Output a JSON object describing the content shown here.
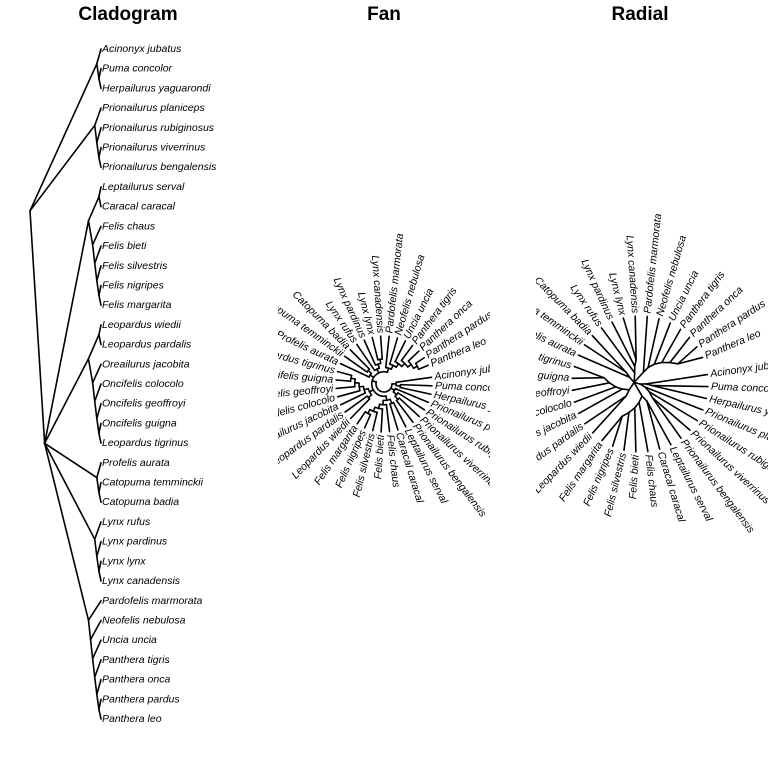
{
  "panels": [
    {
      "key": "cladogram",
      "title": "Cladogram"
    },
    {
      "key": "fan",
      "title": "Fan"
    },
    {
      "key": "radial",
      "title": "Radial"
    }
  ],
  "taxa": [
    "Acinonyx jubatus",
    "Puma concolor",
    "Herpailurus yaguarondi",
    "Prionailurus planiceps",
    "Prionailurus rubiginosus",
    "Prionailurus viverrinus",
    "Prionailurus bengalensis",
    "Leptailurus serval",
    "Caracal caracal",
    "Felis chaus",
    "Felis bieti",
    "Felis silvestris",
    "Felis nigripes",
    "Felis margarita",
    "Leopardus wiedii",
    "Leopardus pardalis",
    "Oreailurus jacobita",
    "Oncifelis colocolo",
    "Oncifelis geoffroyi",
    "Oncifelis guigna",
    "Leopardus tigrinus",
    "Profelis aurata",
    "Catopuma temminckii",
    "Catopuma badia",
    "Lynx rufus",
    "Lynx pardinus",
    "Lynx lynx",
    "Lynx canadensis",
    "Pardofelis marmorata",
    "Neofelis nebulosa",
    "Uncia uncia",
    "Panthera tigris",
    "Panthera onca",
    "Panthera pardus",
    "Panthera leo"
  ],
  "tree": {
    "name": "root",
    "children": [
      {
        "name": "puma-lineage",
        "children": [
          {
            "taxon": 0
          },
          {
            "name": "puma-herpailurus",
            "children": [
              {
                "taxon": 1
              },
              {
                "taxon": 2
              }
            ]
          }
        ]
      },
      {
        "name": "prionailurus",
        "children": [
          {
            "taxon": 3
          },
          {
            "name": "prionailurus-core",
            "children": [
              {
                "taxon": 4
              },
              {
                "name": "prionailurus-pair",
                "children": [
                  {
                    "taxon": 5
                  },
                  {
                    "taxon": 6
                  }
                ]
              }
            ]
          }
        ]
      },
      {
        "name": "core-felines",
        "children": [
          {
            "name": "caracal-felis",
            "children": [
              {
                "name": "caracal-lineage",
                "children": [
                  {
                    "taxon": 7
                  },
                  {
                    "taxon": 8
                  }
                ]
              },
              {
                "name": "felis",
                "children": [
                  {
                    "taxon": 9
                  },
                  {
                    "name": "felis-core",
                    "children": [
                      {
                        "taxon": 10
                      },
                      {
                        "name": "felis-silv",
                        "children": [
                          {
                            "taxon": 11
                          },
                          {
                            "name": "felis-sub",
                            "children": [
                              {
                                "taxon": 12
                              },
                              {
                                "taxon": 13
                              }
                            ]
                          }
                        ]
                      }
                    ]
                  }
                ]
              }
            ]
          },
          {
            "name": "leopardus-lineage",
            "children": [
              {
                "name": "leopardus-pair",
                "children": [
                  {
                    "taxon": 14
                  },
                  {
                    "taxon": 15
                  }
                ]
              },
              {
                "name": "oncifelis",
                "children": [
                  {
                    "taxon": 16
                  },
                  {
                    "name": "oncifelis-a",
                    "children": [
                      {
                        "taxon": 17
                      },
                      {
                        "name": "oncifelis-b",
                        "children": [
                          {
                            "taxon": 18
                          },
                          {
                            "name": "oncifelis-c",
                            "children": [
                              {
                                "taxon": 19
                              },
                              {
                                "taxon": 20
                              }
                            ]
                          }
                        ]
                      }
                    ]
                  }
                ]
              }
            ]
          },
          {
            "name": "bay-cat-lineage",
            "children": [
              {
                "taxon": 21
              },
              {
                "name": "catopuma",
                "children": [
                  {
                    "taxon": 22
                  },
                  {
                    "taxon": 23
                  }
                ]
              }
            ]
          },
          {
            "name": "lynx",
            "children": [
              {
                "taxon": 24
              },
              {
                "name": "lynx-core",
                "children": [
                  {
                    "taxon": 25
                  },
                  {
                    "name": "lynx-pair",
                    "children": [
                      {
                        "taxon": 26
                      },
                      {
                        "taxon": 27
                      }
                    ]
                  }
                ]
              }
            ]
          },
          {
            "name": "pantherinae",
            "children": [
              {
                "taxon": 28
              },
              {
                "name": "pantherinae-core",
                "children": [
                  {
                    "taxon": 29
                  },
                  {
                    "name": "uncia-panthera",
                    "children": [
                      {
                        "taxon": 30
                      },
                      {
                        "name": "panthera",
                        "children": [
                          {
                            "taxon": 31
                          },
                          {
                            "name": "panthera-core",
                            "children": [
                              {
                                "taxon": 32
                              },
                              {
                                "name": "panthera-pair",
                                "children": [
                                  {
                                    "taxon": 33
                                  },
                                  {
                                    "taxon": 34
                                  }
                                ]
                              }
                            ]
                          }
                        ]
                      }
                    ]
                  }
                ]
              }
            ]
          }
        ]
      }
    ]
  }
}
